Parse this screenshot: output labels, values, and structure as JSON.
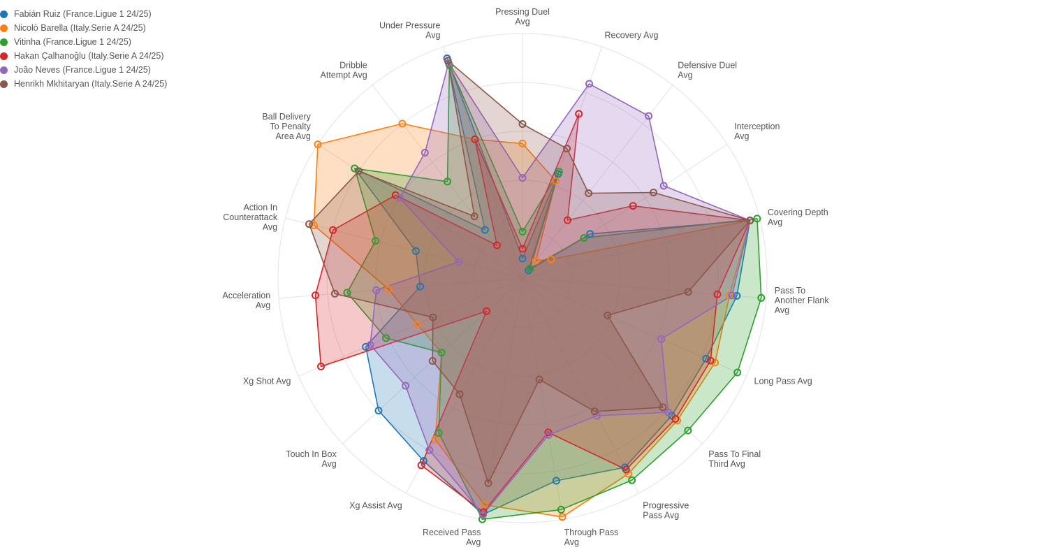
{
  "chart_data": {
    "type": "radar",
    "legend_position": "top-left",
    "grid": true,
    "axis_range": [
      0,
      1
    ],
    "axes": [
      "Pressing Duel\nAvg",
      "Recovery Avg",
      "Defensive Duel\nAvg",
      "Interception\nAvg",
      "Covering Depth\nAvg",
      "Pass To\nAnother Flank\nAvg",
      "Long Pass Avg",
      "Pass To Final\nThird Avg",
      "Progressive\nPass Avg",
      "Through Pass\nAvg",
      "Received Pass\nAvg",
      "Xg Assist Avg",
      "Touch In Box\nAvg",
      "Xg Shot Avg",
      "Acceleration\nAvg",
      "Action In\nCounterattack\nAvg",
      "Ball Delivery\nTo Penalty\nArea Avg",
      "Dribble\nAttempt Avg",
      "Under Pressure\nAvg"
    ],
    "series": [
      {
        "name": "Fabián Ruiz (France.Ligue 1 24/25)",
        "color": "#1f77b4",
        "values": [
          0.08,
          0.45,
          0.04,
          0.33,
          0.96,
          0.88,
          0.82,
          0.83,
          0.88,
          0.84,
          0.98,
          0.85,
          0.8,
          0.7,
          0.42,
          0.45,
          0.82,
          0.25,
          0.95
        ]
      },
      {
        "name": "Nicolò Barella (Italy.Serie A 24/25)",
        "color": "#ff7f0e",
        "values": [
          0.55,
          0.42,
          0.09,
          0.14,
          0.96,
          0.85,
          0.86,
          0.86,
          0.91,
          0.99,
          0.94,
          0.75,
          0.45,
          0.47,
          0.55,
          0.88,
          1.0,
          0.8,
          0.6
        ]
      },
      {
        "name": "Vitinha (France.Ligue 1 24/25)",
        "color": "#2ca02c",
        "values": [
          0.19,
          0.46,
          0.05,
          0.3,
          0.99,
          0.98,
          0.96,
          0.92,
          0.94,
          0.96,
          1.0,
          0.72,
          0.45,
          0.61,
          0.72,
          0.62,
          0.82,
          0.5,
          0.92
        ]
      },
      {
        "name": "Hakan Çalhanoğlu (Italy.Serie A 24/25)",
        "color": "#d62728",
        "values": [
          0.12,
          0.71,
          0.3,
          0.54,
          0.96,
          0.8,
          0.84,
          0.85,
          0.89,
          0.64,
          0.97,
          0.87,
          0.2,
          0.9,
          0.85,
          0.8,
          0.62,
          0.17,
          0.6
        ]
      },
      {
        "name": "João Neves (France.Ligue 1 24/25)",
        "color": "#9467bd",
        "values": [
          0.41,
          0.84,
          0.84,
          0.69,
          0.96,
          0.86,
          0.62,
          0.81,
          0.64,
          0.65,
          0.98,
          0.8,
          0.65,
          0.68,
          0.6,
          0.27,
          0.6,
          0.65,
          0.93
        ]
      },
      {
        "name": "Henrikh Mkhitaryan (Italy.Serie A 24/25)",
        "color": "#8c564b",
        "values": [
          0.63,
          0.56,
          0.44,
          0.64,
          0.96,
          0.68,
          0.38,
          0.78,
          0.62,
          0.42,
          0.85,
          0.54,
          0.5,
          0.4,
          0.77,
          0.9,
          0.8,
          0.32,
          0.94
        ]
      }
    ]
  }
}
